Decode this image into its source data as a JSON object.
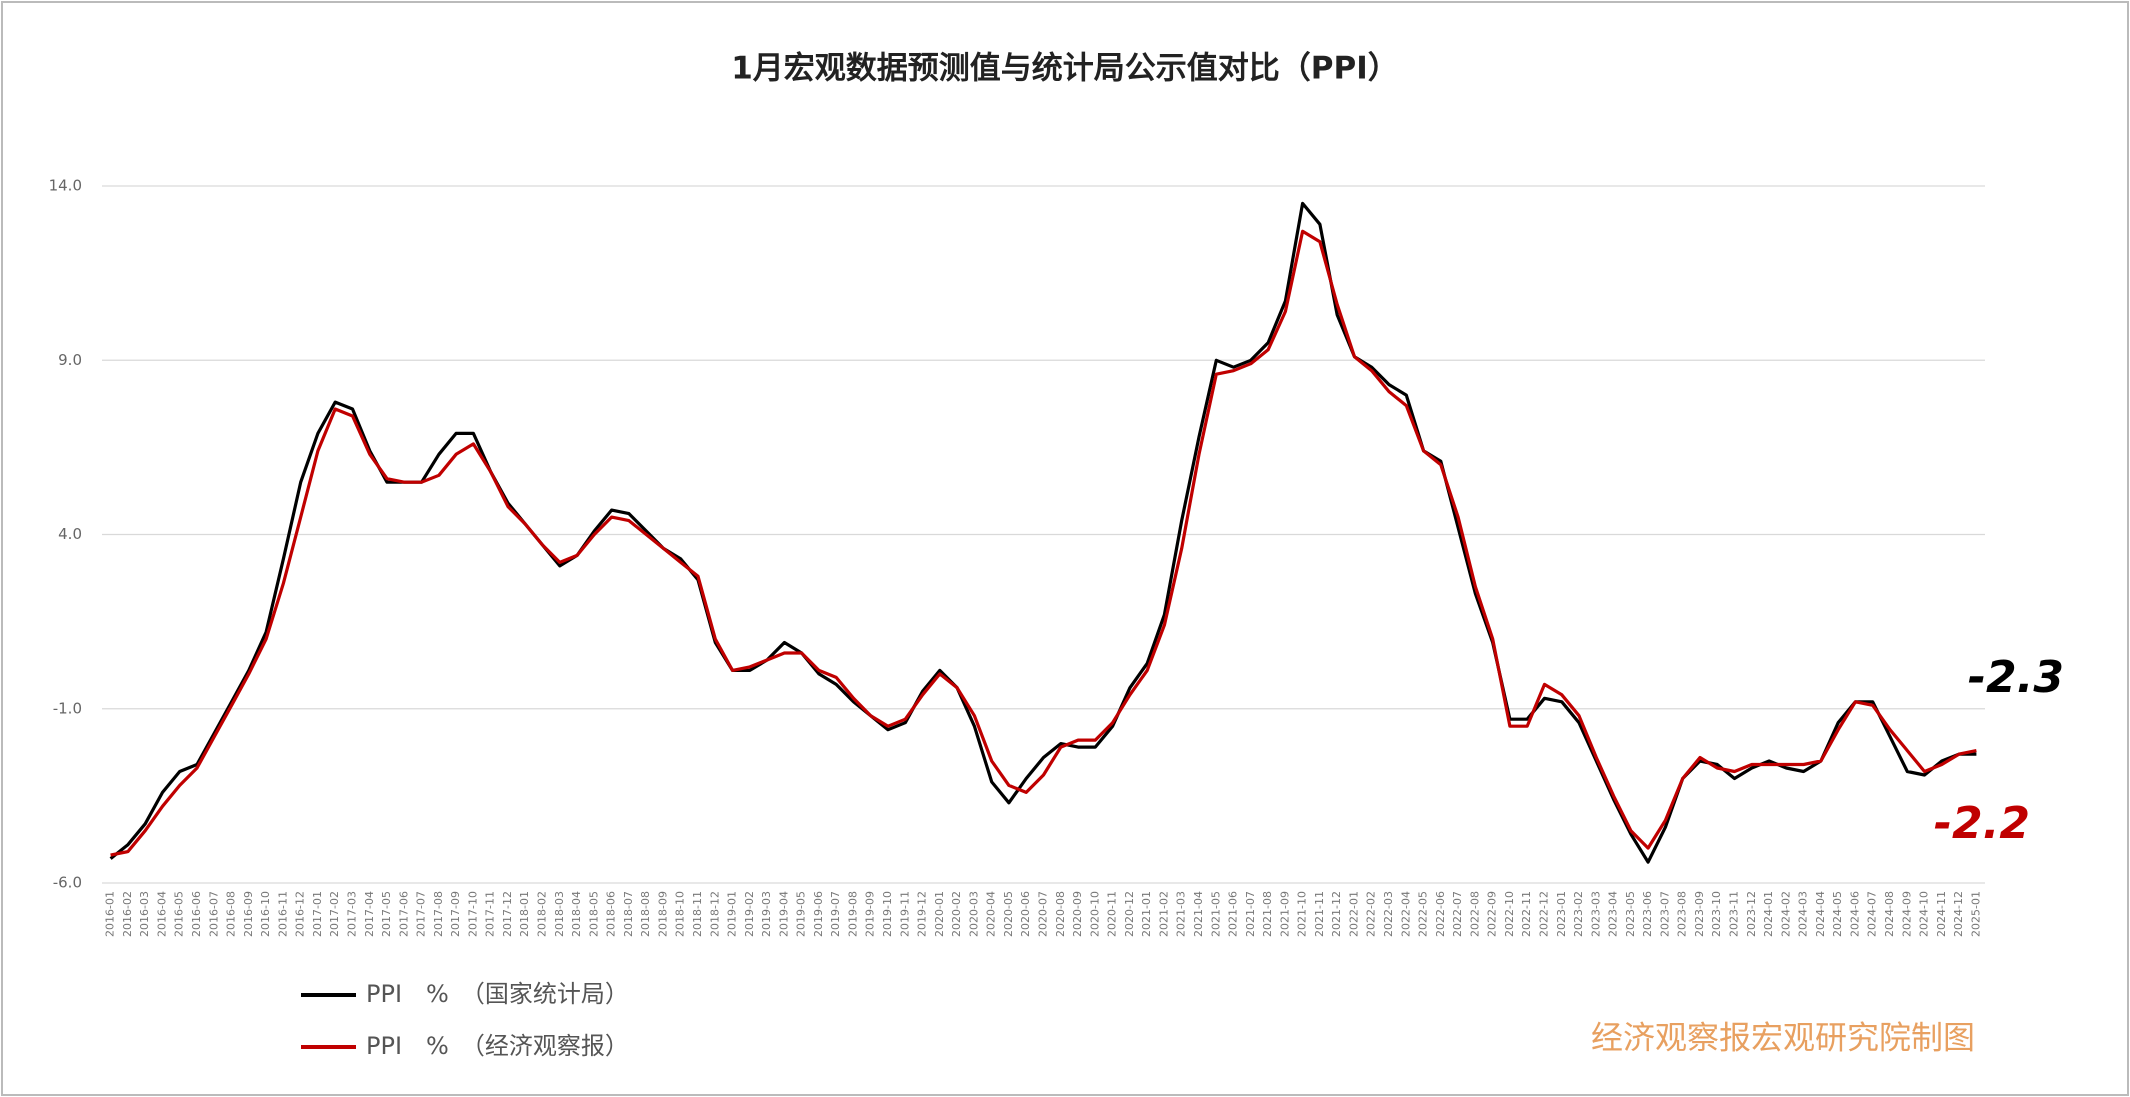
{
  "chart_data": {
    "type": "line",
    "title": "1月宏观数据预测值与统计局公示值对比（PPI）",
    "categories": [
      "2016-01",
      "2016-02",
      "2016-03",
      "2016-04",
      "2016-05",
      "2016-06",
      "2016-07",
      "2016-08",
      "2016-09",
      "2016-10",
      "2016-11",
      "2016-12",
      "2017-01",
      "2017-02",
      "2017-03",
      "2017-04",
      "2017-05",
      "2017-06",
      "2017-07",
      "2017-08",
      "2017-09",
      "2017-10",
      "2017-11",
      "2017-12",
      "2018-01",
      "2018-02",
      "2018-03",
      "2018-04",
      "2018-05",
      "2018-06",
      "2018-07",
      "2018-08",
      "2018-09",
      "2018-10",
      "2018-11",
      "2018-12",
      "2019-01",
      "2019-02",
      "2019-03",
      "2019-04",
      "2019-05",
      "2019-06",
      "2019-07",
      "2019-08",
      "2019-09",
      "2019-10",
      "2019-11",
      "2019-12",
      "2020-01",
      "2020-02",
      "2020-03",
      "2020-04",
      "2020-05",
      "2020-06",
      "2020-07",
      "2020-08",
      "2020-09",
      "2020-10",
      "2020-11",
      "2020-12",
      "2021-01",
      "2021-02",
      "2021-03",
      "2021-04",
      "2021-05",
      "2021-06",
      "2021-07",
      "2021-08",
      "2021-09",
      "2021-10",
      "2021-11",
      "2021-12",
      "2022-01",
      "2022-02",
      "2022-03",
      "2022-04",
      "2022-05",
      "2022-06",
      "2022-07",
      "2022-08",
      "2022-09",
      "2022-10",
      "2022-11",
      "2022-12",
      "2023-01",
      "2023-02",
      "2023-03",
      "2023-04",
      "2023-05",
      "2023-06",
      "2023-07",
      "2023-08",
      "2023-09",
      "2023-10",
      "2023-11",
      "2023-12",
      "2024-01",
      "2024-02",
      "2024-03",
      "2024-04",
      "2024-05",
      "2024-06",
      "2024-07",
      "2024-08",
      "2024-09",
      "2024-10",
      "2024-11",
      "2024-12",
      "2025-01"
    ],
    "series": [
      {
        "name": "PPI　%　（国家统计局）",
        "color": "#000000",
        "values": [
          -5.3,
          -4.9,
          -4.3,
          -3.4,
          -2.8,
          -2.6,
          -1.7,
          -0.8,
          0.1,
          1.2,
          3.3,
          5.5,
          6.9,
          7.8,
          7.6,
          6.4,
          5.5,
          5.5,
          5.5,
          6.3,
          6.9,
          6.9,
          5.8,
          4.9,
          4.3,
          3.7,
          3.1,
          3.4,
          4.1,
          4.7,
          4.6,
          4.1,
          3.6,
          3.3,
          2.7,
          0.9,
          0.1,
          0.1,
          0.4,
          0.9,
          0.6,
          0.0,
          -0.3,
          -0.8,
          -1.2,
          -1.6,
          -1.4,
          -0.5,
          0.1,
          -0.4,
          -1.5,
          -3.1,
          -3.7,
          -3.0,
          -2.4,
          -2.0,
          -2.1,
          -2.1,
          -1.5,
          -0.4,
          0.3,
          1.7,
          4.4,
          6.8,
          9.0,
          8.8,
          9.0,
          9.5,
          10.7,
          13.5,
          12.9,
          10.3,
          9.1,
          8.8,
          8.3,
          8.0,
          6.4,
          6.1,
          4.2,
          2.3,
          0.9,
          -1.3,
          -1.3,
          -0.7,
          -0.8,
          -1.4,
          -2.5,
          -3.6,
          -4.6,
          -5.4,
          -4.4,
          -3.0,
          -2.5,
          -2.6,
          -3.0,
          -2.7,
          -2.5,
          -2.7,
          -2.8,
          -2.5,
          -1.4,
          -0.8,
          -0.8,
          -1.8,
          -2.8,
          -2.9,
          -2.5,
          -2.3,
          -2.3
        ]
      },
      {
        "name": "PPI　%　（经济观察报）",
        "color": "#c00000",
        "values": [
          -5.2,
          -5.1,
          -4.5,
          -3.8,
          -3.2,
          -2.7,
          -1.8,
          -0.9,
          0.0,
          1.0,
          2.6,
          4.5,
          6.4,
          7.6,
          7.4,
          6.3,
          5.6,
          5.5,
          5.5,
          5.7,
          6.3,
          6.6,
          5.8,
          4.8,
          4.3,
          3.7,
          3.2,
          3.4,
          4.0,
          4.5,
          4.4,
          4.0,
          3.6,
          3.2,
          2.8,
          1.0,
          0.1,
          0.2,
          0.4,
          0.6,
          0.6,
          0.1,
          -0.1,
          -0.7,
          -1.2,
          -1.5,
          -1.3,
          -0.6,
          0.0,
          -0.4,
          -1.2,
          -2.5,
          -3.2,
          -3.4,
          -2.9,
          -2.1,
          -1.9,
          -1.9,
          -1.4,
          -0.6,
          0.1,
          1.4,
          3.6,
          6.3,
          8.6,
          8.7,
          8.9,
          9.3,
          10.4,
          12.7,
          12.4,
          10.6,
          9.1,
          8.7,
          8.1,
          7.7,
          6.4,
          6.0,
          4.5,
          2.5,
          1.0,
          -1.5,
          -1.5,
          -0.3,
          -0.6,
          -1.2,
          -2.4,
          -3.5,
          -4.5,
          -5.0,
          -4.2,
          -3.0,
          -2.4,
          -2.7,
          -2.8,
          -2.6,
          -2.6,
          -2.6,
          -2.6,
          -2.5,
          -1.6,
          -0.8,
          -0.9,
          -1.6,
          -2.2,
          -2.8,
          -2.6,
          -2.3,
          -2.2
        ]
      }
    ],
    "ylim": [
      -6,
      14
    ],
    "yticks": [
      {
        "value": -6,
        "label": "-6.0"
      },
      {
        "value": -1,
        "label": "-1.0"
      },
      {
        "value": 4,
        "label": "4.0"
      },
      {
        "value": 9,
        "label": "9.0"
      },
      {
        "value": 14,
        "label": "14.0"
      }
    ],
    "grid": true,
    "annotations": [
      "-2.3",
      "-2.2"
    ],
    "source": "经济观察报宏观研究院制图"
  }
}
